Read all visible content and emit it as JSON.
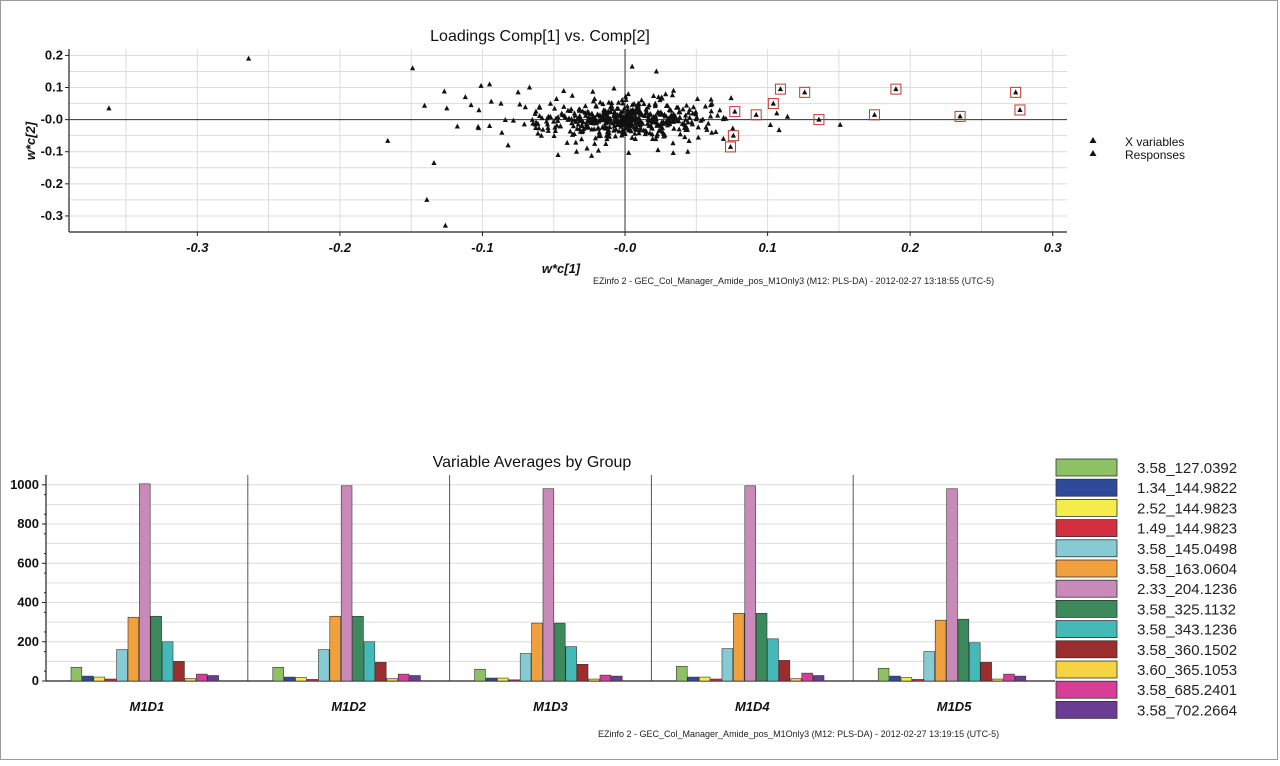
{
  "scatter_plot": {
    "footer": "EZinfo 2 - GEC_Col_Manager_Amide_pos_M1Only3 (M12: PLS-DA) - 2012-02-27 13:18:55 (UTC-5)",
    "legend": [
      "X variables",
      "Responses"
    ],
    "marker_color": "#111111",
    "highlight_color": "#c0392b"
  },
  "bar_plot": {
    "footer": "EZinfo 2 - GEC_Col_Manager_Amide_pos_M1Only3 (M12: PLS-DA) - 2012-02-27 13:19:15 (UTC-5)"
  },
  "chart_data": [
    {
      "type": "scatter",
      "title": "Loadings Comp[1] vs. Comp[2]",
      "xlabel": "w*c[1]",
      "ylabel": "w*c[2]",
      "xlim": [
        -0.39,
        0.31
      ],
      "ylim": [
        -0.35,
        0.22
      ],
      "xticks": [
        -0.3,
        -0.2,
        -0.1,
        -0.0,
        0.1,
        0.2,
        0.3
      ],
      "xtick_labels": [
        "-0.3",
        "-0.2",
        "-0.1",
        "-0.0",
        "0.1",
        "0.2",
        "0.3"
      ],
      "yticks": [
        0.2,
        0.1,
        0.0,
        -0.1,
        -0.2,
        -0.3
      ],
      "ytick_labels": [
        "0.2",
        "0.1",
        "-0.0",
        "-0.1",
        "-0.2",
        "-0.3"
      ],
      "grid": true,
      "legend_position": "right",
      "outliers": [
        [
          -0.362,
          0.035
        ],
        [
          -0.264,
          0.19
        ],
        [
          -0.149,
          0.16
        ],
        [
          -0.139,
          -0.25
        ],
        [
          -0.134,
          -0.135
        ],
        [
          -0.126,
          -0.33
        ],
        [
          -0.125,
          0.035
        ],
        [
          -0.108,
          0.045
        ],
        [
          -0.112,
          0.07
        ],
        [
          -0.101,
          0.105
        ],
        [
          -0.095,
          0.11
        ],
        [
          -0.087,
          0.05
        ],
        [
          -0.082,
          -0.08
        ],
        [
          -0.067,
          0.1
        ],
        [
          -0.047,
          -0.11
        ],
        [
          -0.034,
          -0.1
        ],
        [
          0.005,
          0.165
        ],
        [
          0.022,
          0.15
        ],
        [
          0.044,
          -0.1
        ],
        [
          0.06,
          0.045
        ],
        [
          0.069,
          -0.06
        ],
        [
          -0.095,
          -0.02
        ],
        [
          -0.075,
          0.085
        ],
        [
          0.034,
          0.09
        ],
        [
          -0.06,
          0.04
        ]
      ],
      "cluster": {
        "center": [
          -0.005,
          0.0
        ],
        "count": 520,
        "spread": [
          0.028,
          0.028
        ]
      },
      "highlighted": [
        [
          0.077,
          0.025
        ],
        [
          0.092,
          0.015
        ],
        [
          0.104,
          0.05
        ],
        [
          0.109,
          0.095
        ],
        [
          0.126,
          0.085
        ],
        [
          0.136,
          0.0
        ],
        [
          0.175,
          0.015
        ],
        [
          0.19,
          0.095
        ],
        [
          0.235,
          0.01
        ],
        [
          0.274,
          0.085
        ],
        [
          0.277,
          0.03
        ],
        [
          0.076,
          -0.05
        ],
        [
          0.074,
          -0.085
        ]
      ]
    },
    {
      "type": "bar",
      "title": "Variable Averages by Group",
      "categories": [
        "M1D1",
        "M1D2",
        "M1D3",
        "M1D4",
        "M1D5"
      ],
      "ylim": [
        0,
        1050
      ],
      "yticks": [
        0,
        200,
        400,
        600,
        800,
        1000
      ],
      "legend_position": "right",
      "series": [
        {
          "name": "3.58_127.0392",
          "color": "#8dc163",
          "values": [
            70,
            70,
            60,
            75,
            65
          ]
        },
        {
          "name": "1.34_144.9822",
          "color": "#2e4a9a",
          "values": [
            25,
            20,
            15,
            20,
            25
          ]
        },
        {
          "name": "2.52_144.9823",
          "color": "#f4ec4a",
          "values": [
            20,
            18,
            15,
            20,
            18
          ]
        },
        {
          "name": "1.49_144.9823",
          "color": "#d32f3f",
          "values": [
            10,
            8,
            6,
            10,
            8
          ]
        },
        {
          "name": "3.58_145.0498",
          "color": "#86cbd3",
          "values": [
            160,
            160,
            140,
            165,
            150
          ]
        },
        {
          "name": "3.58_163.0604",
          "color": "#f0a03c",
          "values": [
            325,
            330,
            295,
            345,
            310
          ]
        },
        {
          "name": "2.33_204.1236",
          "color": "#c98ab9",
          "values": [
            1005,
            995,
            980,
            995,
            980
          ]
        },
        {
          "name": "3.58_325.1132",
          "color": "#3c8a5c",
          "values": [
            330,
            330,
            295,
            345,
            315
          ]
        },
        {
          "name": "3.58_343.1236",
          "color": "#45b8b8",
          "values": [
            200,
            200,
            175,
            215,
            195
          ]
        },
        {
          "name": "3.58_360.1502",
          "color": "#9c2d2e",
          "values": [
            100,
            95,
            85,
            105,
            95
          ]
        },
        {
          "name": "3.60_365.1053",
          "color": "#f5d343",
          "values": [
            12,
            12,
            10,
            12,
            10
          ]
        },
        {
          "name": "3.58_685.2401",
          "color": "#d63e97",
          "values": [
            35,
            35,
            30,
            40,
            35
          ]
        },
        {
          "name": "3.58_702.2664",
          "color": "#6a3d93",
          "values": [
            28,
            28,
            25,
            28,
            25
          ]
        }
      ]
    }
  ]
}
